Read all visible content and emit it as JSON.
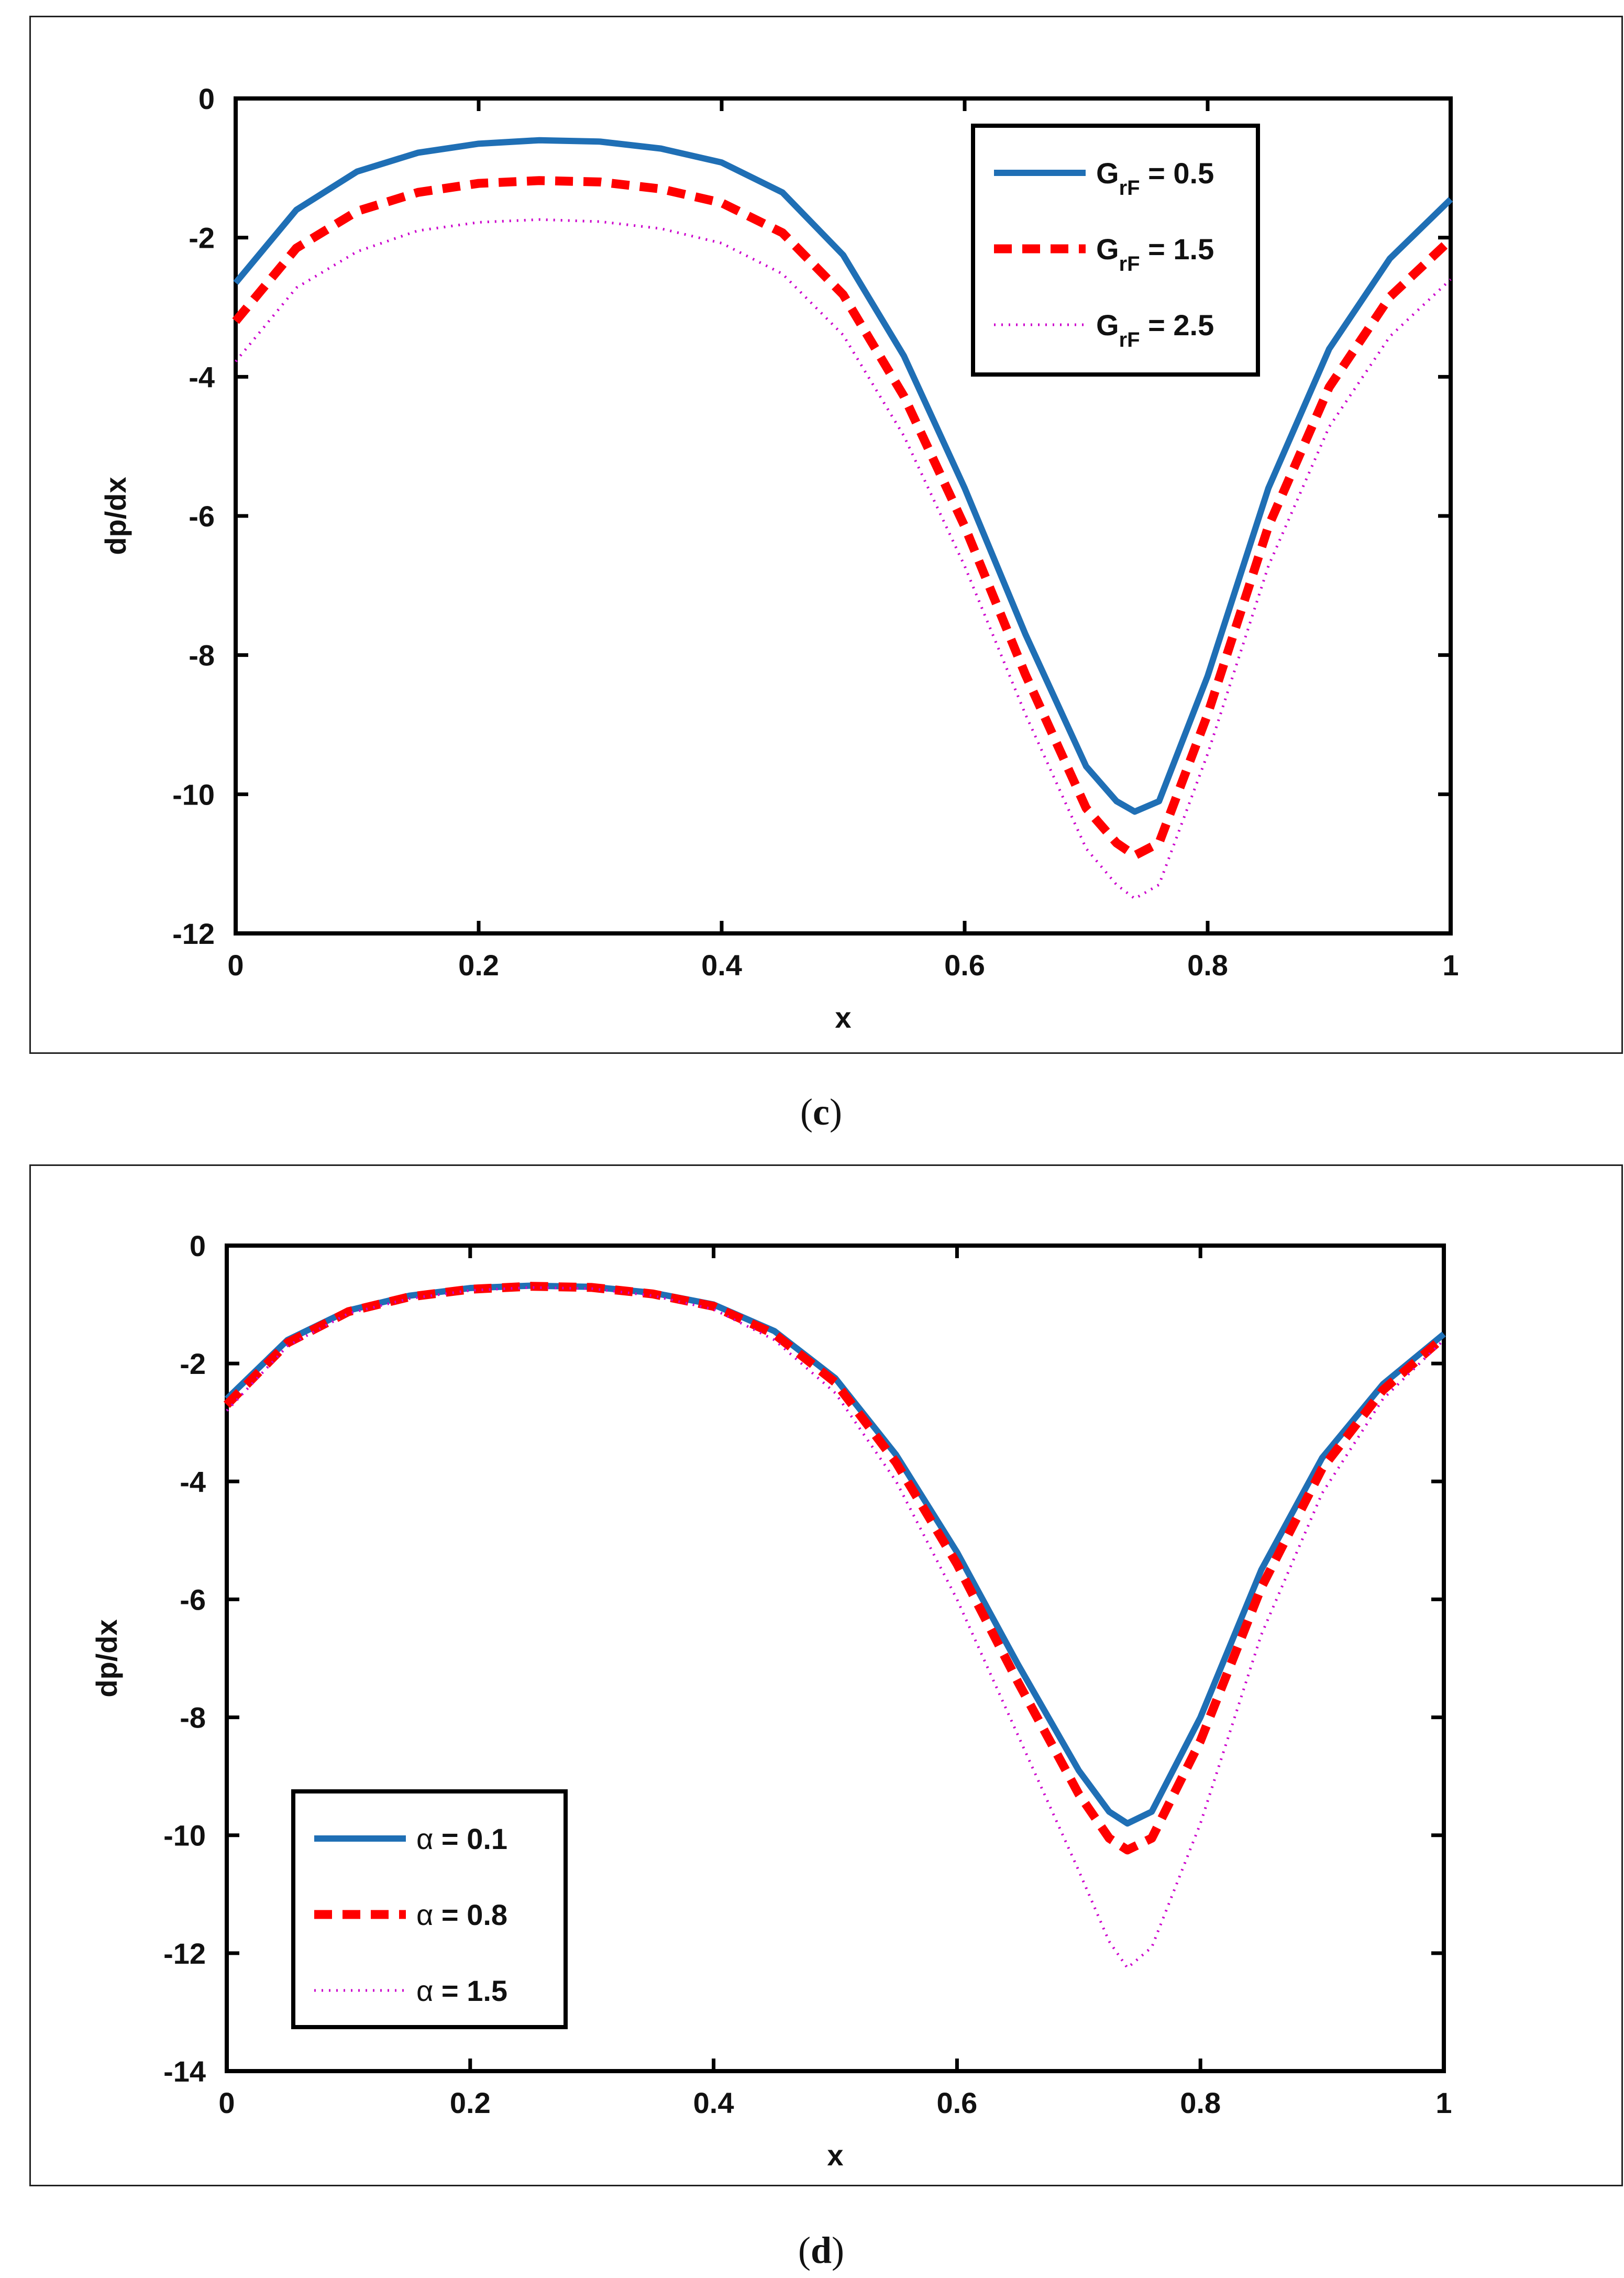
{
  "colors": {
    "series1": "#1f6fb5",
    "series2": "#ff0000",
    "series3": "#cc00cc",
    "axis": "#000000"
  },
  "chart_data": [
    {
      "id": "c",
      "type": "line",
      "caption_label": "(c)",
      "caption_letter": "c",
      "xlabel": "x",
      "ylabel": "dp/dx",
      "xlim": [
        0,
        1
      ],
      "ylim": [
        -12,
        0
      ],
      "xticks": [
        0,
        0.2,
        0.4,
        0.6,
        0.8,
        1
      ],
      "xtick_labels": [
        "0",
        "0.2",
        "0.4",
        "0.6",
        "0.8",
        "1"
      ],
      "yticks": [
        0,
        -2,
        -4,
        -6,
        -8,
        -10,
        -12
      ],
      "ytick_labels": [
        "0",
        "-2",
        "-4",
        "-6",
        "-8",
        "-10",
        "-12"
      ],
      "legend_position": "top-right",
      "x": [
        0,
        0.05,
        0.1,
        0.15,
        0.2,
        0.25,
        0.3,
        0.35,
        0.4,
        0.45,
        0.5,
        0.55,
        0.6,
        0.65,
        0.7,
        0.725,
        0.74,
        0.76,
        0.8,
        0.85,
        0.9,
        0.95,
        1
      ],
      "series": [
        {
          "name": "G_rF = 0.5",
          "legend_main": "G",
          "legend_sub": "rF",
          "legend_value": " = 0.5",
          "style": "solid",
          "values": [
            -2.65,
            -1.6,
            -1.05,
            -0.78,
            -0.65,
            -0.6,
            -0.62,
            -0.72,
            -0.92,
            -1.35,
            -2.25,
            -3.7,
            -5.6,
            -7.7,
            -9.6,
            -10.1,
            -10.25,
            -10.1,
            -8.3,
            -5.6,
            -3.6,
            -2.3,
            -1.45
          ]
        },
        {
          "name": "G_rF = 1.5",
          "legend_main": "G",
          "legend_sub": "rF",
          "legend_value": " = 1.5",
          "style": "dashed",
          "values": [
            -3.2,
            -2.15,
            -1.62,
            -1.35,
            -1.22,
            -1.18,
            -1.2,
            -1.3,
            -1.5,
            -1.93,
            -2.82,
            -4.28,
            -6.15,
            -8.28,
            -10.2,
            -10.7,
            -10.88,
            -10.7,
            -8.85,
            -6.15,
            -4.15,
            -2.85,
            -2.03
          ]
        },
        {
          "name": "G_rF = 2.5",
          "legend_main": "G",
          "legend_sub": "rF",
          "legend_value": " = 2.5",
          "style": "dotted",
          "values": [
            -3.78,
            -2.72,
            -2.2,
            -1.9,
            -1.78,
            -1.74,
            -1.77,
            -1.87,
            -2.08,
            -2.52,
            -3.4,
            -4.85,
            -6.72,
            -8.85,
            -10.78,
            -11.3,
            -11.5,
            -11.3,
            -9.42,
            -6.72,
            -4.72,
            -3.42,
            -2.6
          ]
        }
      ]
    },
    {
      "id": "d",
      "type": "line",
      "caption_label": "(d)",
      "caption_letter": "d",
      "xlabel": "x",
      "ylabel": "dp/dx",
      "xlim": [
        0,
        1
      ],
      "ylim": [
        -14,
        0
      ],
      "xticks": [
        0,
        0.2,
        0.4,
        0.6,
        0.8,
        1
      ],
      "xtick_labels": [
        "0",
        "0.2",
        "0.4",
        "0.6",
        "0.8",
        "1"
      ],
      "yticks": [
        0,
        -2,
        -4,
        -6,
        -8,
        -10,
        -12,
        -14
      ],
      "ytick_labels": [
        "0",
        "-2",
        "-4",
        "-6",
        "-8",
        "-10",
        "-12",
        "-14"
      ],
      "legend_position": "bottom-left",
      "x": [
        0,
        0.05,
        0.1,
        0.15,
        0.2,
        0.25,
        0.3,
        0.35,
        0.4,
        0.45,
        0.5,
        0.55,
        0.6,
        0.65,
        0.7,
        0.725,
        0.74,
        0.76,
        0.8,
        0.85,
        0.9,
        0.95,
        1
      ],
      "series": [
        {
          "name": "α = 0.1",
          "legend_main": "α",
          "legend_sub": "",
          "legend_value": " = 0.1",
          "style": "solid",
          "values": [
            -2.6,
            -1.6,
            -1.1,
            -0.85,
            -0.72,
            -0.68,
            -0.7,
            -0.8,
            -1.0,
            -1.45,
            -2.25,
            -3.55,
            -5.2,
            -7.1,
            -8.9,
            -9.6,
            -9.8,
            -9.6,
            -8.0,
            -5.5,
            -3.6,
            -2.35,
            -1.5
          ]
        },
        {
          "name": "α = 0.8",
          "legend_main": "α",
          "legend_sub": "",
          "legend_value": " = 0.8",
          "style": "dashed",
          "values": [
            -2.7,
            -1.65,
            -1.12,
            -0.87,
            -0.74,
            -0.69,
            -0.71,
            -0.82,
            -1.03,
            -1.5,
            -2.32,
            -3.68,
            -5.4,
            -7.4,
            -9.3,
            -10.05,
            -10.25,
            -10.05,
            -8.4,
            -5.8,
            -3.78,
            -2.45,
            -1.55
          ]
        },
        {
          "name": "α = 1.5",
          "legend_main": "α",
          "legend_sub": "",
          "legend_value": " = 1.5",
          "style": "dotted",
          "values": [
            -2.8,
            -1.7,
            -1.15,
            -0.9,
            -0.76,
            -0.71,
            -0.73,
            -0.85,
            -1.08,
            -1.6,
            -2.5,
            -4.0,
            -6.0,
            -8.3,
            -10.6,
            -11.8,
            -12.25,
            -11.9,
            -9.8,
            -6.6,
            -4.2,
            -2.6,
            -1.6
          ]
        }
      ]
    }
  ]
}
